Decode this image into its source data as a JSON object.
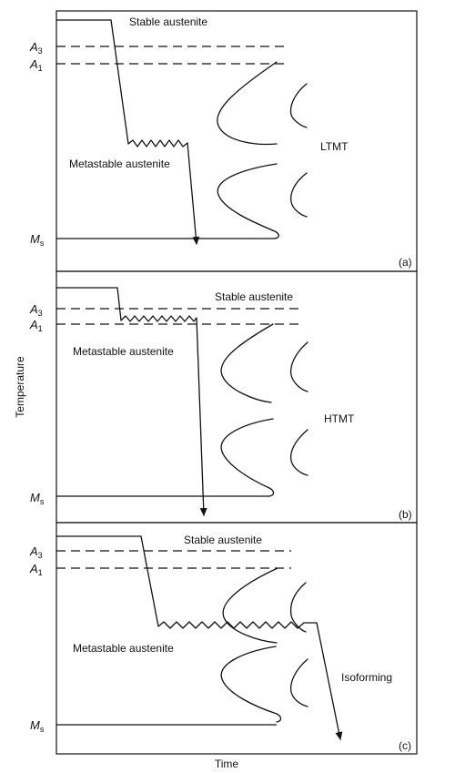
{
  "axes": {
    "y_label": "Temperature",
    "x_label": "Time"
  },
  "panels": [
    {
      "tag": "(a)",
      "process": "LTMT",
      "stable_label": "Stable austenite",
      "metastable_label": "Metastable austenite",
      "a3_main": "A",
      "a3_sub": "3",
      "a1_main": "A",
      "a1_sub": "1",
      "ms_main": "M",
      "ms_sub": "s"
    },
    {
      "tag": "(b)",
      "process": "HTMT",
      "stable_label": "Stable austenite",
      "metastable_label": "Metastable austenite",
      "a3_main": "A",
      "a3_sub": "3",
      "a1_main": "A",
      "a1_sub": "1",
      "ms_main": "M",
      "ms_sub": "s"
    },
    {
      "tag": "(c)",
      "process": "Isoforming",
      "stable_label": "Stable austenite",
      "metastable_label": "Metastable austenite",
      "a3_main": "A",
      "a3_sub": "3",
      "a1_main": "A",
      "a1_sub": "1",
      "ms_main": "M",
      "ms_sub": "s"
    }
  ]
}
